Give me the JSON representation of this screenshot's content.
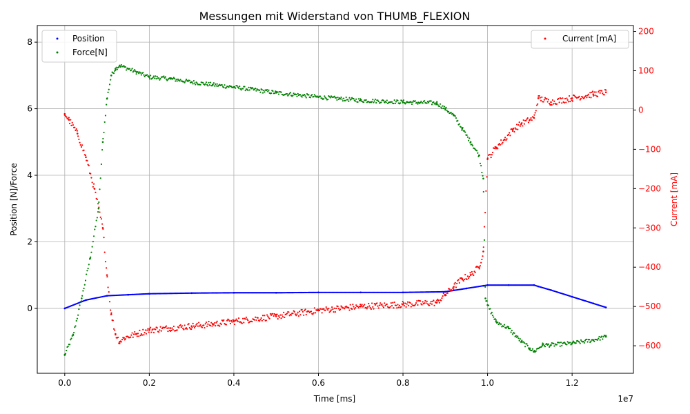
{
  "chart_data": {
    "type": "scatter",
    "title": "Messungen mit Widerstand von THUMB_FLEXION",
    "xlabel": "Time [ms]",
    "ylabel_left": "Position [N]/Force",
    "ylabel_right": "Current [mA]",
    "x_offset_label": "1e7",
    "x_scale": 10000000,
    "xlim": [
      -0.065,
      1.345
    ],
    "ylim_left": [
      -1.95,
      8.5
    ],
    "ylim_right": [
      -670,
      215
    ],
    "x_ticks": [
      0.0,
      0.2,
      0.4,
      0.6,
      0.8,
      1.0,
      1.2
    ],
    "x_tick_labels": [
      "0.0",
      "0.2",
      "0.4",
      "0.6",
      "0.8",
      "1.0",
      "1.2"
    ],
    "y_left_ticks": [
      0,
      2,
      4,
      6,
      8
    ],
    "y_left_tick_labels": [
      "0",
      "2",
      "4",
      "6",
      "8"
    ],
    "y_right_ticks": [
      -600,
      -500,
      -400,
      -300,
      -200,
      -100,
      0,
      100,
      200
    ],
    "y_right_tick_labels": [
      "−600",
      "−500",
      "−400",
      "−300",
      "−200",
      "−100",
      "0",
      "100",
      "200"
    ],
    "grid": true,
    "legend_left": "upper-left",
    "legend_right": "upper-right",
    "colors": {
      "position": "#0000ff",
      "force": "#008000",
      "current": "#ff0000",
      "right_axis": "#ff0000",
      "grid": "#b0b0b0"
    },
    "series": [
      {
        "name": "Position",
        "axis": "left",
        "color": "#0000ff",
        "x": [
          0.0,
          0.05,
          0.1,
          0.15,
          0.2,
          0.3,
          0.4,
          0.5,
          0.6,
          0.7,
          0.8,
          0.9,
          0.95,
          0.99,
          1.0,
          1.05,
          1.11,
          1.12,
          1.15,
          1.2,
          1.25,
          1.28
        ],
        "y": [
          0.0,
          0.25,
          0.38,
          0.41,
          0.44,
          0.46,
          0.47,
          0.47,
          0.48,
          0.48,
          0.48,
          0.5,
          0.6,
          0.68,
          0.7,
          0.7,
          0.7,
          0.66,
          0.55,
          0.35,
          0.15,
          0.03
        ]
      },
      {
        "name": "Force[N]",
        "axis": "left",
        "color": "#008000",
        "x": [
          0.0,
          0.02,
          0.04,
          0.06,
          0.08,
          0.09,
          0.1,
          0.11,
          0.12,
          0.13,
          0.15,
          0.17,
          0.2,
          0.25,
          0.3,
          0.35,
          0.4,
          0.5,
          0.6,
          0.7,
          0.8,
          0.88,
          0.9,
          0.92,
          0.94,
          0.96,
          0.98,
          0.99,
          0.995,
          1.0,
          1.02,
          1.05,
          1.08,
          1.1,
          1.11,
          1.13,
          1.15,
          1.2,
          1.25,
          1.28
        ],
        "y": [
          -1.4,
          -0.8,
          0.3,
          1.5,
          3.0,
          5.0,
          6.3,
          7.0,
          7.2,
          7.3,
          7.2,
          7.1,
          6.95,
          6.9,
          6.8,
          6.72,
          6.65,
          6.48,
          6.35,
          6.25,
          6.2,
          6.17,
          6.0,
          5.8,
          5.4,
          5.0,
          4.6,
          3.9,
          0.3,
          0.1,
          -0.4,
          -0.6,
          -1.0,
          -1.2,
          -1.3,
          -1.1,
          -1.1,
          -1.05,
          -0.95,
          -0.85
        ]
      },
      {
        "name": "Current [mA]",
        "axis": "right",
        "color": "#ff0000",
        "x": [
          0.0,
          0.01,
          0.03,
          0.05,
          0.07,
          0.09,
          0.1,
          0.11,
          0.12,
          0.13,
          0.14,
          0.17,
          0.2,
          0.25,
          0.3,
          0.35,
          0.4,
          0.5,
          0.6,
          0.7,
          0.8,
          0.88,
          0.9,
          0.92,
          0.94,
          0.96,
          0.98,
          0.99,
          1.0,
          1.02,
          1.04,
          1.06,
          1.08,
          1.1,
          1.11,
          1.12,
          1.15,
          1.2,
          1.25,
          1.28
        ],
        "y": [
          -10,
          -25,
          -60,
          -120,
          -200,
          -300,
          -420,
          -520,
          -570,
          -590,
          -580,
          -570,
          -560,
          -555,
          -550,
          -545,
          -538,
          -525,
          -510,
          -500,
          -495,
          -490,
          -470,
          -450,
          -430,
          -420,
          -400,
          -360,
          -125,
          -95,
          -75,
          -50,
          -35,
          -25,
          -20,
          30,
          20,
          30,
          40,
          45
        ]
      }
    ]
  }
}
